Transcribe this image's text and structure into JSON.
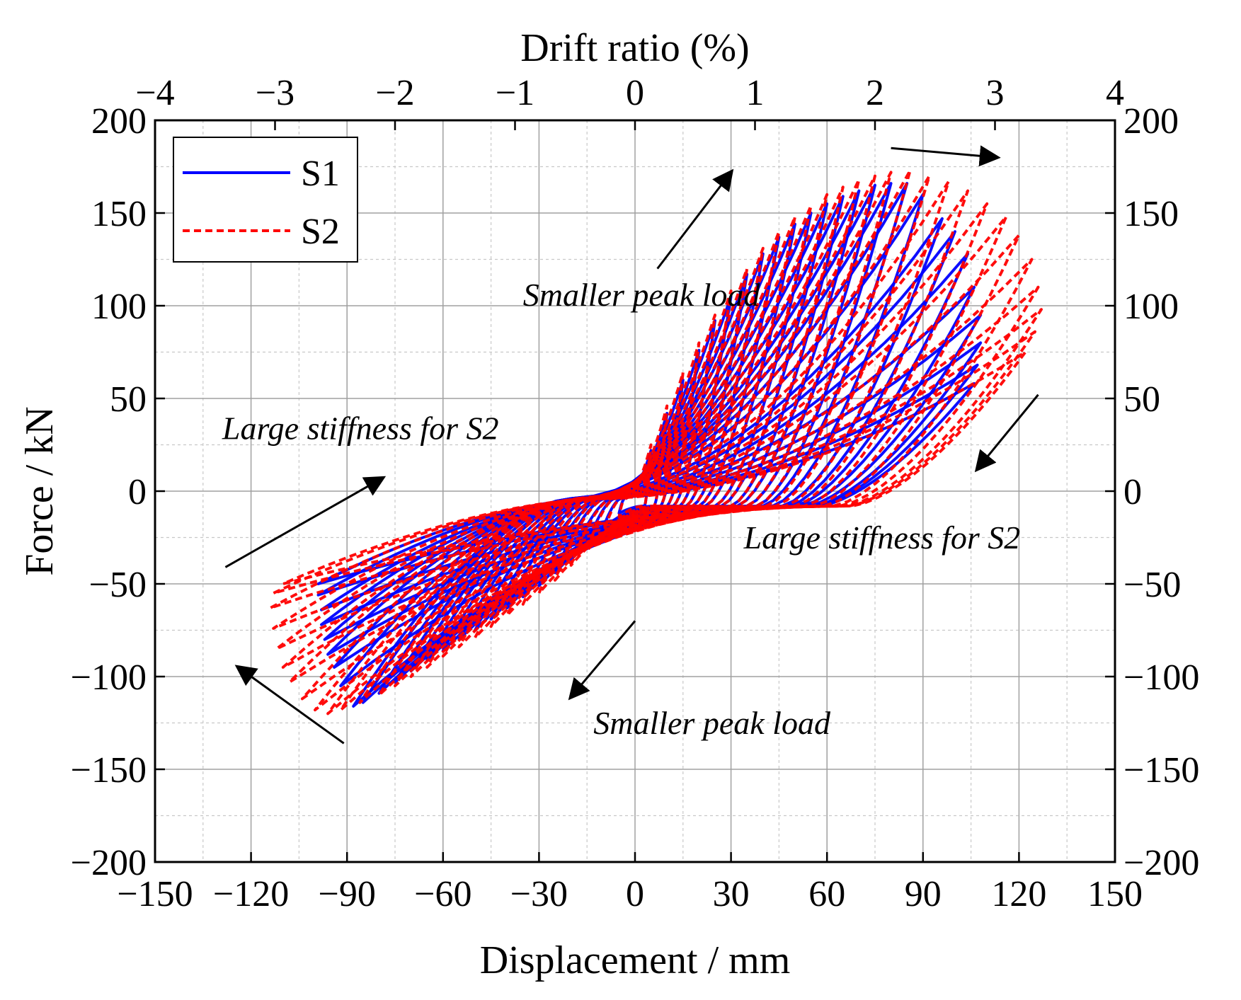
{
  "chart_data": {
    "type": "line",
    "title": "",
    "xlabel": "Displacement / mm",
    "ylabel": "Force / kN",
    "x2label": "Drift ratio (%)",
    "xlim": [
      -150,
      150
    ],
    "ylim": [
      -200,
      200
    ],
    "x2lim": [
      -4,
      4
    ],
    "xticks": [
      -150,
      -120,
      -90,
      -60,
      -30,
      0,
      30,
      60,
      90,
      120,
      150
    ],
    "xtick_labels": [
      "−150",
      "−120",
      "−90",
      "−60",
      "−30",
      "0",
      "30",
      "60",
      "90",
      "120",
      "150"
    ],
    "yticks": [
      200,
      150,
      100,
      50,
      0,
      -50,
      -100,
      -150,
      -200
    ],
    "ytick_labels": [
      "200",
      "150",
      "100",
      "50",
      "0",
      "−50",
      "−100",
      "−150",
      "−200"
    ],
    "x2ticks": [
      -4,
      -3,
      -2,
      -1,
      0,
      1,
      2,
      3,
      4
    ],
    "x2tick_labels": [
      "−4",
      "−3",
      "−2",
      "−1",
      "0",
      "1",
      "2",
      "3",
      "4"
    ],
    "grid": true,
    "legend_position": "top-left",
    "series": [
      {
        "name": "S1",
        "color": "#0000ff",
        "style": "solid",
        "peaks": [
          {
            "pd": 5,
            "pf": 22,
            "nd": -5,
            "nf": -12,
            "rp": 3,
            "rn": -3
          },
          {
            "pd": 10,
            "pf": 42,
            "nd": -10,
            "nf": -20,
            "rp": 6,
            "rn": -4
          },
          {
            "pd": 15,
            "pf": 60,
            "nd": -15,
            "nf": -29,
            "rp": 8,
            "rn": -6
          },
          {
            "pd": 20,
            "pf": 76,
            "nd": -20,
            "nf": -37,
            "rp": 10,
            "rn": -7
          },
          {
            "pd": 25,
            "pf": 92,
            "nd": -25,
            "nf": -44,
            "rp": 12,
            "rn": -9
          },
          {
            "pd": 30,
            "pf": 105,
            "nd": -30,
            "nf": -51,
            "rp": 14,
            "rn": -10
          },
          {
            "pd": 35,
            "pf": 117,
            "nd": -35,
            "nf": -57,
            "rp": 16,
            "rn": -11
          },
          {
            "pd": 40,
            "pf": 128,
            "nd": -40,
            "nf": -63,
            "rp": 18,
            "rn": -13
          },
          {
            "pd": 45,
            "pf": 137,
            "nd": -45,
            "nf": -69,
            "rp": 20,
            "rn": -14
          },
          {
            "pd": 50,
            "pf": 144,
            "nd": -50,
            "nf": -75,
            "rp": 22,
            "rn": -15
          },
          {
            "pd": 55,
            "pf": 150,
            "nd": -55,
            "nf": -80,
            "rp": 25,
            "rn": -16
          },
          {
            "pd": 60,
            "pf": 155,
            "nd": -60,
            "nf": -86,
            "rp": 27,
            "rn": -17
          },
          {
            "pd": 65,
            "pf": 159,
            "nd": -65,
            "nf": -91,
            "rp": 30,
            "rn": -18
          },
          {
            "pd": 70,
            "pf": 162,
            "nd": -70,
            "nf": -97,
            "rp": 32,
            "rn": -18
          },
          {
            "pd": 75,
            "pf": 165,
            "nd": -75,
            "nf": -103,
            "rp": 35,
            "rn": -19
          },
          {
            "pd": 80,
            "pf": 166,
            "nd": -80,
            "nf": -109,
            "rp": 38,
            "rn": -20
          },
          {
            "pd": 85,
            "pf": 166,
            "nd": -85,
            "nf": -114,
            "rp": 40,
            "rn": -20
          },
          {
            "pd": 90,
            "pf": 160,
            "nd": -88,
            "nf": -116,
            "rp": 43,
            "rn": -20
          },
          {
            "pd": 96,
            "pf": 147,
            "nd": -92,
            "nf": -105,
            "rp": 46,
            "rn": -19
          },
          {
            "pd": 100,
            "pf": 140,
            "nd": -94,
            "nf": -95,
            "rp": 48,
            "rn": -18
          },
          {
            "pd": 104,
            "pf": 128,
            "nd": -96,
            "nf": -88,
            "rp": 50,
            "rn": -17
          },
          {
            "pd": 106,
            "pf": 110,
            "nd": -97,
            "nf": -80,
            "rp": 52,
            "rn": -16
          },
          {
            "pd": 108,
            "pf": 95,
            "nd": -98,
            "nf": -72,
            "rp": 54,
            "rn": -15
          },
          {
            "pd": 108,
            "pf": 80,
            "nd": -98,
            "nf": -64,
            "rp": 56,
            "rn": -14
          },
          {
            "pd": 107,
            "pf": 68,
            "nd": -99,
            "nf": -56,
            "rp": 57,
            "rn": -13
          },
          {
            "pd": 106,
            "pf": 58,
            "nd": -99,
            "nf": -50,
            "rp": 58,
            "rn": -12
          }
        ]
      },
      {
        "name": "S2",
        "color": "#ff0000",
        "style": "dashed",
        "peaks": [
          {
            "pd": 5,
            "pf": 25,
            "nd": -5,
            "nf": -14,
            "rp": 3,
            "rn": -3
          },
          {
            "pd": 10,
            "pf": 46,
            "nd": -10,
            "nf": -23,
            "rp": 6,
            "rn": -4
          },
          {
            "pd": 15,
            "pf": 64,
            "nd": -15,
            "nf": -32,
            "rp": 8,
            "rn": -6
          },
          {
            "pd": 20,
            "pf": 80,
            "nd": -20,
            "nf": -40,
            "rp": 10,
            "rn": -7
          },
          {
            "pd": 25,
            "pf": 95,
            "nd": -25,
            "nf": -48,
            "rp": 12,
            "rn": -9
          },
          {
            "pd": 30,
            "pf": 108,
            "nd": -30,
            "nf": -55,
            "rp": 14,
            "rn": -10
          },
          {
            "pd": 35,
            "pf": 120,
            "nd": -35,
            "nf": -61,
            "rp": 16,
            "rn": -11
          },
          {
            "pd": 40,
            "pf": 131,
            "nd": -40,
            "nf": -67,
            "rp": 18,
            "rn": -12
          },
          {
            "pd": 45,
            "pf": 140,
            "nd": -45,
            "nf": -73,
            "rp": 20,
            "rn": -13
          },
          {
            "pd": 50,
            "pf": 148,
            "nd": -50,
            "nf": -79,
            "rp": 22,
            "rn": -14
          },
          {
            "pd": 55,
            "pf": 154,
            "nd": -55,
            "nf": -84,
            "rp": 25,
            "rn": -15
          },
          {
            "pd": 60,
            "pf": 160,
            "nd": -60,
            "nf": -89,
            "rp": 27,
            "rn": -15
          },
          {
            "pd": 65,
            "pf": 164,
            "nd": -65,
            "nf": -95,
            "rp": 30,
            "rn": -16
          },
          {
            "pd": 70,
            "pf": 168,
            "nd": -70,
            "nf": -100,
            "rp": 32,
            "rn": -17
          },
          {
            "pd": 75,
            "pf": 170,
            "nd": -75,
            "nf": -105,
            "rp": 35,
            "rn": -17
          },
          {
            "pd": 80,
            "pf": 172,
            "nd": -80,
            "nf": -110,
            "rp": 38,
            "rn": -18
          },
          {
            "pd": 86,
            "pf": 173,
            "nd": -86,
            "nf": -114,
            "rp": 41,
            "rn": -18
          },
          {
            "pd": 92,
            "pf": 170,
            "nd": -92,
            "nf": -118,
            "rp": 44,
            "rn": -18
          },
          {
            "pd": 98,
            "pf": 167,
            "nd": -96,
            "nf": -120,
            "rp": 47,
            "rn": -18
          },
          {
            "pd": 104,
            "pf": 162,
            "nd": -100,
            "nf": -118,
            "rp": 50,
            "rn": -17
          },
          {
            "pd": 110,
            "pf": 155,
            "nd": -104,
            "nf": -112,
            "rp": 53,
            "rn": -16
          },
          {
            "pd": 116,
            "pf": 148,
            "nd": -108,
            "nf": -103,
            "rp": 56,
            "rn": -15
          },
          {
            "pd": 120,
            "pf": 138,
            "nd": -110,
            "nf": -95,
            "rp": 59,
            "rn": -14
          },
          {
            "pd": 124,
            "pf": 125,
            "nd": -112,
            "nf": -85,
            "rp": 62,
            "rn": -13
          },
          {
            "pd": 126,
            "pf": 110,
            "nd": -113,
            "nf": -74,
            "rp": 64,
            "rn": -12
          },
          {
            "pd": 127,
            "pf": 98,
            "nd": -114,
            "nf": -63,
            "rp": 66,
            "rn": -11
          },
          {
            "pd": 125,
            "pf": 86,
            "nd": -113,
            "nf": -55,
            "rp": 67,
            "rn": -10
          },
          {
            "pd": 122,
            "pf": 75,
            "nd": -110,
            "nf": -50,
            "rp": 68,
            "rn": -10
          }
        ]
      }
    ],
    "annotations": [
      {
        "text": "Smaller peak load",
        "x": -35,
        "y": 100
      },
      {
        "text": "Smaller peak load",
        "x": -13,
        "y": -131
      },
      {
        "text": "Large stiffness for S2",
        "x": -129,
        "y": 28
      },
      {
        "text": "Large stiffness for S2",
        "x": 34,
        "y": -31
      }
    ],
    "arrows": [
      {
        "x1": 7,
        "y1": 120,
        "x2": 30,
        "y2": 172
      },
      {
        "x1": 80,
        "y1": 185,
        "x2": 113,
        "y2": 180
      },
      {
        "x1": 126,
        "y1": 52,
        "x2": 107,
        "y2": 12
      },
      {
        "x1": 0,
        "y1": -70,
        "x2": -20,
        "y2": -111
      },
      {
        "x1": -128,
        "y1": -41,
        "x2": -79,
        "y2": 7
      },
      {
        "x1": -91,
        "y1": -136,
        "x2": -124,
        "y2": -95
      }
    ]
  }
}
